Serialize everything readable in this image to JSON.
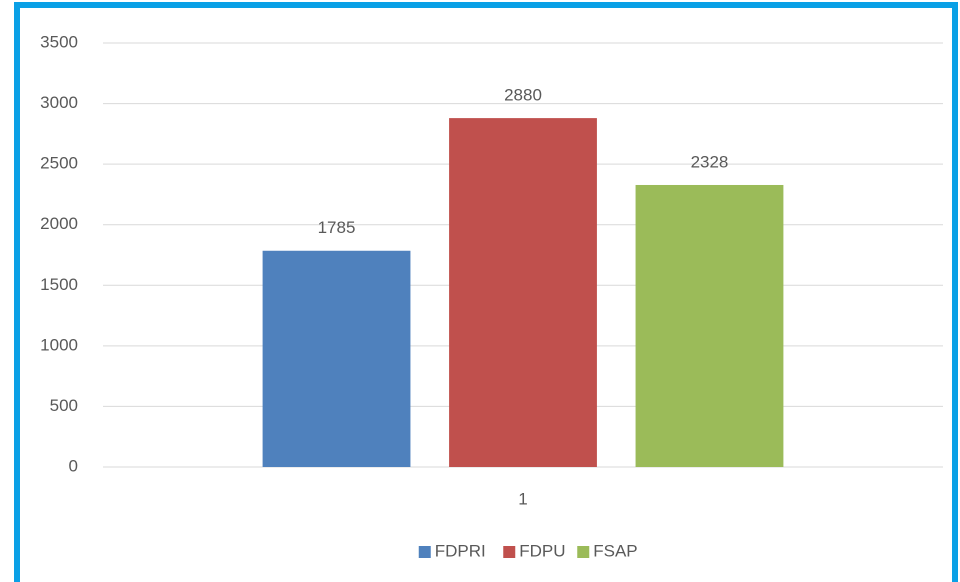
{
  "chart_data": {
    "type": "bar",
    "categories": [
      "1"
    ],
    "series": [
      {
        "name": "FDPRI",
        "color": "#4f81bd",
        "values": [
          1785
        ]
      },
      {
        "name": "FDPU",
        "color": "#c0504d",
        "values": [
          2880
        ]
      },
      {
        "name": "FSAP",
        "color": "#9bbb59",
        "values": [
          2328
        ]
      }
    ],
    "ylim": [
      0,
      3500
    ],
    "yticks": [
      0,
      500,
      1000,
      1500,
      2000,
      2500,
      3000,
      3500
    ],
    "grid": true,
    "legend": "bottom",
    "data_labels": true
  }
}
